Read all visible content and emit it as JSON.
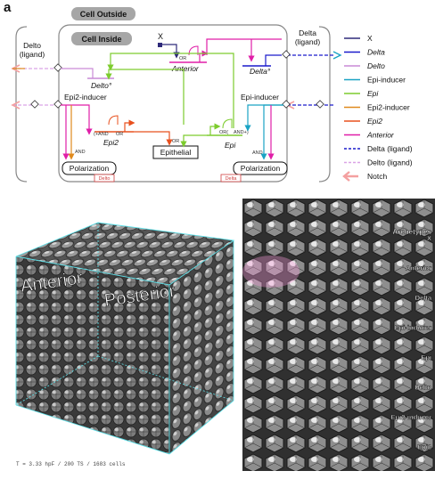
{
  "panel_label": "a",
  "compartments": {
    "outside": "Cell Outside",
    "inside": "Cell Inside"
  },
  "nodes": {
    "delto_ligand": "Delto\n(ligand)",
    "delta_ligand": "Delta\n(ligand)",
    "x": "X",
    "anterior": "Anterior",
    "delta_gene": "Delta°",
    "delto_gene": "Delto°",
    "epi2_inducer": "Epi2-inducer",
    "epi_inducer": "Epi-inducer",
    "epi2": "Epi2",
    "epi": "Epi",
    "epithelial": "Epithelial",
    "polarization_left": "Polarization",
    "polarization_right": "Polarization",
    "delto_tag": "Delto",
    "delta_tag": "Delta"
  },
  "logic": {
    "or": "OR",
    "and": "AND",
    "epi2_and": "(+AND",
    "epi2_or": "OR",
    "epi_or": "OR(",
    "epi_and": "AND+)"
  },
  "legend": [
    {
      "label": "X",
      "color": "#2e2a7a",
      "style": "solid",
      "italic": false
    },
    {
      "label": "Delta",
      "color": "#1a1acc",
      "style": "solid",
      "italic": true
    },
    {
      "label": "Delto",
      "color": "#c98ad6",
      "style": "solid",
      "italic": true
    },
    {
      "label": "Epi-inducer",
      "color": "#1aa3c4",
      "style": "solid",
      "italic": false
    },
    {
      "label": "Epi",
      "color": "#7dcc2e",
      "style": "solid",
      "italic": true
    },
    {
      "label": "Epi2-inducer",
      "color": "#e08a1e",
      "style": "solid",
      "italic": false
    },
    {
      "label": "Epi2",
      "color": "#e8501e",
      "style": "solid",
      "italic": true
    },
    {
      "label": "Anterior",
      "color": "#e01ea8",
      "style": "solid",
      "italic": true
    },
    {
      "label": "Delta (ligand)",
      "color": "#1a1acc",
      "style": "dashed",
      "italic": false
    },
    {
      "label": "Delto (ligand)",
      "color": "#d9a3e6",
      "style": "dashed",
      "italic": false
    },
    {
      "label": "Notch",
      "color": "#f4a0a0",
      "style": "arrow",
      "italic": false
    }
  ],
  "cube": {
    "label_left": "Anterior",
    "label_right": "Posterior",
    "caption": "T = 3.33 hpF / 200 TS / 1683 cells",
    "edge_color": "#5ee0e8"
  },
  "archetypes": {
    "header": "Archetypes",
    "rows": [
      "X",
      "Anterior",
      "Delta",
      "Epi-inducer",
      "Epi",
      "Delto",
      "Epi2-inducer",
      "Epi2"
    ]
  }
}
